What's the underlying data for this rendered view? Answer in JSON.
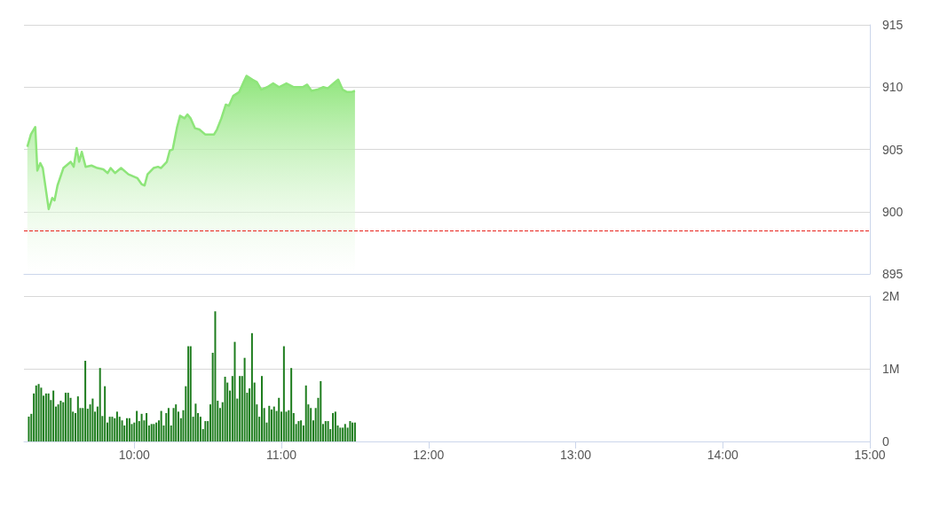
{
  "chart_data": [
    {
      "type": "area",
      "color": "#8ee57a",
      "xlim": [
        9.25,
        15
      ],
      "ylim": [
        895,
        915
      ],
      "yticks": [
        895,
        900,
        905,
        910,
        915
      ],
      "grid": "y",
      "tick_labels": "y",
      "x": [
        9.273,
        9.297,
        9.327,
        9.341,
        9.361,
        9.378,
        9.418,
        9.442,
        9.458,
        9.478,
        9.518,
        9.538,
        9.568,
        9.588,
        9.608,
        9.625,
        9.643,
        9.669,
        9.709,
        9.749,
        9.789,
        9.819,
        9.839,
        9.869,
        9.91,
        9.96,
        10.02,
        10.05,
        10.07,
        10.09,
        10.131,
        10.161,
        10.181,
        10.221,
        10.241,
        10.261,
        10.291,
        10.311,
        10.341,
        10.361,
        10.382,
        10.412,
        10.442,
        10.482,
        10.542,
        10.562,
        10.592,
        10.622,
        10.643,
        10.673,
        10.713,
        10.743,
        10.763,
        10.803,
        10.833,
        10.863,
        10.904,
        10.944,
        10.984,
        11.034,
        11.084,
        11.145,
        11.175,
        11.205,
        11.245,
        11.285,
        11.315,
        11.355,
        11.386,
        11.416,
        11.446,
        11.476,
        11.5
      ],
      "values": [
        905.2,
        906.2,
        906.8,
        903.3,
        903.9,
        903.5,
        900.2,
        901.1,
        900.9,
        902.1,
        903.5,
        903.7,
        904.0,
        903.6,
        905.1,
        904.0,
        904.8,
        903.6,
        903.7,
        903.5,
        903.4,
        903.1,
        903.5,
        903.1,
        903.5,
        903.0,
        902.7,
        902.2,
        902.1,
        903.0,
        903.5,
        903.6,
        903.5,
        904.0,
        904.9,
        905.0,
        906.8,
        907.7,
        907.5,
        907.8,
        907.5,
        906.7,
        906.6,
        906.2,
        906.2,
        906.6,
        907.5,
        908.6,
        908.5,
        909.3,
        909.6,
        910.4,
        910.9,
        910.6,
        910.4,
        909.8,
        910.0,
        910.3,
        910.0,
        910.3,
        910.0,
        910.0,
        910.2,
        909.7,
        909.8,
        910.0,
        909.9,
        910.3,
        910.6,
        909.8,
        909.6,
        909.6,
        909.7
      ],
      "ref_lines": [
        {
          "axis": "y",
          "value": 898.5,
          "color": "#e8231d",
          "line_style": "dashed"
        }
      ]
    },
    {
      "type": "bar",
      "color": "#1e7d1e",
      "xlim": [
        9.25,
        15
      ],
      "xticks": [
        {
          "value": 10,
          "label": "10:00"
        },
        {
          "value": 11,
          "label": "11:00"
        },
        {
          "value": 12,
          "label": "12:00"
        },
        {
          "value": 13,
          "label": "13:00"
        },
        {
          "value": 14,
          "label": "14:00"
        },
        {
          "value": 15,
          "label": "15:00"
        }
      ],
      "ylim": [
        0,
        2000000
      ],
      "yticks": [
        0,
        {
          "value": 1000000,
          "label": "1M"
        },
        {
          "value": 2000000,
          "label": "2M"
        }
      ],
      "grid": "y",
      "x": [
        9.283,
        9.3,
        9.317,
        9.333,
        9.35,
        9.367,
        9.383,
        9.4,
        9.417,
        9.433,
        9.45,
        9.467,
        9.483,
        9.5,
        9.517,
        9.533,
        9.55,
        9.567,
        9.583,
        9.6,
        9.617,
        9.633,
        9.65,
        9.667,
        9.683,
        9.7,
        9.717,
        9.733,
        9.75,
        9.767,
        9.783,
        9.8,
        9.817,
        9.833,
        9.85,
        9.867,
        9.883,
        9.9,
        9.917,
        9.933,
        9.95,
        9.967,
        9.983,
        10,
        10.017,
        10.033,
        10.05,
        10.067,
        10.083,
        10.1,
        10.117,
        10.133,
        10.15,
        10.167,
        10.183,
        10.2,
        10.217,
        10.233,
        10.25,
        10.267,
        10.283,
        10.3,
        10.317,
        10.333,
        10.35,
        10.367,
        10.383,
        10.4,
        10.417,
        10.433,
        10.45,
        10.467,
        10.483,
        10.5,
        10.517,
        10.533,
        10.55,
        10.567,
        10.583,
        10.6,
        10.617,
        10.633,
        10.65,
        10.667,
        10.683,
        10.7,
        10.717,
        10.733,
        10.75,
        10.767,
        10.783,
        10.8,
        10.817,
        10.833,
        10.85,
        10.867,
        10.883,
        10.9,
        10.917,
        10.933,
        10.95,
        10.967,
        10.983,
        11,
        11.017,
        11.033,
        11.05,
        11.067,
        11.083,
        11.1,
        11.117,
        11.133,
        11.15,
        11.167,
        11.183,
        11.2,
        11.217,
        11.233,
        11.25,
        11.267,
        11.283,
        11.3,
        11.317,
        11.333,
        11.35,
        11.367,
        11.383,
        11.4,
        11.417,
        11.433,
        11.45,
        11.467,
        11.483,
        11.5
      ],
      "values": [
        340000,
        380000,
        660000,
        770000,
        790000,
        740000,
        630000,
        660000,
        660000,
        570000,
        700000,
        480000,
        510000,
        560000,
        540000,
        670000,
        670000,
        600000,
        410000,
        390000,
        620000,
        460000,
        460000,
        1110000,
        450000,
        510000,
        590000,
        410000,
        480000,
        1010000,
        350000,
        760000,
        260000,
        340000,
        340000,
        320000,
        410000,
        340000,
        290000,
        220000,
        320000,
        320000,
        240000,
        260000,
        420000,
        280000,
        380000,
        290000,
        390000,
        220000,
        240000,
        240000,
        260000,
        290000,
        420000,
        220000,
        390000,
        460000,
        220000,
        460000,
        510000,
        410000,
        320000,
        430000,
        760000,
        1310000,
        1310000,
        340000,
        520000,
        390000,
        340000,
        170000,
        280000,
        280000,
        510000,
        1220000,
        1790000,
        560000,
        460000,
        540000,
        890000,
        810000,
        700000,
        900000,
        1370000,
        590000,
        900000,
        900000,
        1150000,
        670000,
        730000,
        1490000,
        810000,
        510000,
        340000,
        900000,
        460000,
        260000,
        490000,
        440000,
        480000,
        420000,
        600000,
        410000,
        1310000,
        410000,
        430000,
        1010000,
        390000,
        240000,
        280000,
        290000,
        220000,
        770000,
        510000,
        460000,
        290000,
        460000,
        600000,
        830000,
        240000,
        280000,
        280000,
        170000,
        390000,
        410000,
        220000,
        190000,
        190000,
        240000,
        190000,
        280000,
        260000,
        260000
      ]
    }
  ]
}
